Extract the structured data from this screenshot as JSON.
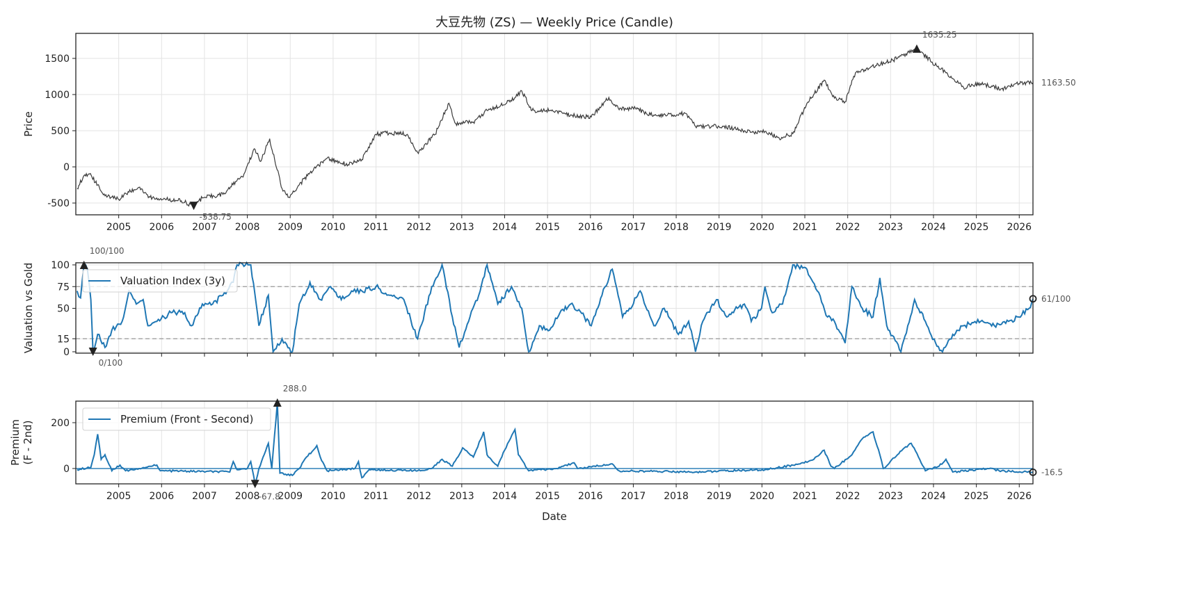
{
  "title": "大豆先物 (ZS) — Weekly Price (Candle)",
  "colors": {
    "price": "#3a3a3a",
    "series": "#1f77b4",
    "grid": "#e3e3e3",
    "ref": "#999999",
    "marker": "#222222"
  },
  "chart_data": [
    {
      "type": "line",
      "subtype": "candle",
      "ylabel": "Price",
      "xlabel": "",
      "xlim": [
        2004.0,
        2026.32
      ],
      "ylim": [
        -663,
        1846
      ],
      "yticks": [
        -500,
        0,
        500,
        1000,
        1500
      ],
      "xticks": [
        "2005",
        "2006",
        "2007",
        "2008",
        "2009",
        "2010",
        "2011",
        "2012",
        "2013",
        "2014",
        "2015",
        "2016",
        "2017",
        "2018",
        "2019",
        "2020",
        "2021",
        "2022",
        "2023",
        "2024",
        "2025",
        "2026"
      ],
      "grid": true,
      "points": [
        [
          2004.03,
          -300
        ],
        [
          2004.19,
          -120
        ],
        [
          2004.32,
          -100
        ],
        [
          2004.51,
          -250
        ],
        [
          2004.68,
          -400
        ],
        [
          2005.0,
          -450
        ],
        [
          2005.24,
          -350
        ],
        [
          2005.49,
          -280
        ],
        [
          2005.73,
          -420
        ],
        [
          2006.46,
          -470
        ],
        [
          2006.75,
          -538.75
        ],
        [
          2006.95,
          -430
        ],
        [
          2007.43,
          -380
        ],
        [
          2007.92,
          -100
        ],
        [
          2008.16,
          250
        ],
        [
          2008.32,
          80
        ],
        [
          2008.52,
          390
        ],
        [
          2008.81,
          -300
        ],
        [
          2008.97,
          -420
        ],
        [
          2009.21,
          -250
        ],
        [
          2009.46,
          -80
        ],
        [
          2009.86,
          120
        ],
        [
          2010.35,
          30
        ],
        [
          2010.67,
          100
        ],
        [
          2011.0,
          450
        ],
        [
          2011.32,
          470
        ],
        [
          2011.73,
          450
        ],
        [
          2011.97,
          200
        ],
        [
          2012.38,
          450
        ],
        [
          2012.7,
          880
        ],
        [
          2012.86,
          600
        ],
        [
          2013.27,
          620
        ],
        [
          2013.59,
          780
        ],
        [
          2013.91,
          850
        ],
        [
          2014.24,
          960
        ],
        [
          2014.4,
          1050
        ],
        [
          2014.64,
          780
        ],
        [
          2015.05,
          780
        ],
        [
          2015.54,
          720
        ],
        [
          2016.02,
          690
        ],
        [
          2016.43,
          960
        ],
        [
          2016.67,
          790
        ],
        [
          2016.99,
          820
        ],
        [
          2017.4,
          720
        ],
        [
          2017.8,
          720
        ],
        [
          2018.21,
          740
        ],
        [
          2018.45,
          560
        ],
        [
          2019.1,
          560
        ],
        [
          2019.75,
          480
        ],
        [
          2020.07,
          490
        ],
        [
          2020.4,
          400
        ],
        [
          2020.72,
          460
        ],
        [
          2021.05,
          880
        ],
        [
          2021.45,
          1200
        ],
        [
          2021.69,
          950
        ],
        [
          2021.94,
          900
        ],
        [
          2022.18,
          1300
        ],
        [
          2022.67,
          1400
        ],
        [
          2023.16,
          1500
        ],
        [
          2023.61,
          1635.25
        ],
        [
          2023.97,
          1450
        ],
        [
          2024.29,
          1300
        ],
        [
          2024.7,
          1100
        ],
        [
          2025.1,
          1150
        ],
        [
          2025.59,
          1080
        ],
        [
          2025.99,
          1150
        ],
        [
          2026.32,
          1163.5
        ]
      ],
      "annotations": {
        "max": {
          "x": 2023.61,
          "y": 1635.25,
          "label": "1635.25"
        },
        "min": {
          "x": 2006.75,
          "y": -538.75,
          "label": "-538.75"
        },
        "last": {
          "y": 1163.5,
          "label": "1163.50"
        }
      }
    },
    {
      "type": "line",
      "ylabel": "Valuation vs Gold",
      "xlim": [
        2004.0,
        2026.32
      ],
      "ylim": [
        -1.6,
        102.4
      ],
      "yticks": [
        0,
        15,
        50,
        75,
        100
      ],
      "reference_lines": [
        75,
        15
      ],
      "grid": true,
      "legend": "upper-left",
      "series": [
        {
          "name": "Valuation Index (3y)",
          "points": [
            [
              2004.03,
              70
            ],
            [
              2004.11,
              62
            ],
            [
              2004.19,
              100
            ],
            [
              2004.27,
              95
            ],
            [
              2004.35,
              60
            ],
            [
              2004.4,
              0
            ],
            [
              2004.51,
              20
            ],
            [
              2004.68,
              5
            ],
            [
              2004.84,
              25
            ],
            [
              2005.08,
              35
            ],
            [
              2005.24,
              70
            ],
            [
              2005.41,
              55
            ],
            [
              2005.57,
              60
            ],
            [
              2005.68,
              30
            ],
            [
              2005.89,
              35
            ],
            [
              2006.22,
              45
            ],
            [
              2006.54,
              45
            ],
            [
              2006.7,
              30
            ],
            [
              2006.95,
              55
            ],
            [
              2007.19,
              55
            ],
            [
              2007.43,
              65
            ],
            [
              2007.67,
              80
            ],
            [
              2007.76,
              100
            ],
            [
              2008.08,
              100
            ],
            [
              2008.27,
              30
            ],
            [
              2008.49,
              65
            ],
            [
              2008.6,
              0
            ],
            [
              2008.81,
              15
            ],
            [
              2009.05,
              0
            ],
            [
              2009.21,
              55
            ],
            [
              2009.46,
              80
            ],
            [
              2009.7,
              60
            ],
            [
              2009.94,
              75
            ],
            [
              2010.19,
              60
            ],
            [
              2010.43,
              70
            ],
            [
              2010.67,
              70
            ],
            [
              2011.0,
              75
            ],
            [
              2011.32,
              65
            ],
            [
              2011.65,
              60
            ],
            [
              2011.97,
              15
            ],
            [
              2012.3,
              75
            ],
            [
              2012.54,
              100
            ],
            [
              2012.78,
              40
            ],
            [
              2012.94,
              5
            ],
            [
              2013.19,
              40
            ],
            [
              2013.43,
              70
            ],
            [
              2013.59,
              100
            ],
            [
              2013.84,
              55
            ],
            [
              2014.16,
              75
            ],
            [
              2014.4,
              50
            ],
            [
              2014.56,
              0
            ],
            [
              2014.81,
              30
            ],
            [
              2015.05,
              25
            ],
            [
              2015.29,
              45
            ],
            [
              2015.54,
              55
            ],
            [
              2015.86,
              40
            ],
            [
              2016.02,
              30
            ],
            [
              2016.27,
              65
            ],
            [
              2016.51,
              95
            ],
            [
              2016.75,
              40
            ],
            [
              2016.91,
              50
            ],
            [
              2017.16,
              70
            ],
            [
              2017.48,
              30
            ],
            [
              2017.72,
              50
            ],
            [
              2018.05,
              20
            ],
            [
              2018.29,
              35
            ],
            [
              2018.45,
              0
            ],
            [
              2018.62,
              35
            ],
            [
              2018.94,
              60
            ],
            [
              2019.18,
              40
            ],
            [
              2019.43,
              50
            ],
            [
              2019.59,
              55
            ],
            [
              2019.75,
              35
            ],
            [
              2019.99,
              50
            ],
            [
              2020.07,
              75
            ],
            [
              2020.24,
              45
            ],
            [
              2020.48,
              55
            ],
            [
              2020.72,
              100
            ],
            [
              2021.05,
              95
            ],
            [
              2021.29,
              70
            ],
            [
              2021.53,
              40
            ],
            [
              2021.69,
              35
            ],
            [
              2021.94,
              10
            ],
            [
              2022.1,
              75
            ],
            [
              2022.34,
              50
            ],
            [
              2022.59,
              40
            ],
            [
              2022.75,
              85
            ],
            [
              2022.91,
              30
            ],
            [
              2023.24,
              0
            ],
            [
              2023.4,
              30
            ],
            [
              2023.56,
              60
            ],
            [
              2023.81,
              35
            ],
            [
              2024.05,
              10
            ],
            [
              2024.21,
              0
            ],
            [
              2024.45,
              20
            ],
            [
              2024.7,
              30
            ],
            [
              2025.1,
              35
            ],
            [
              2025.42,
              30
            ],
            [
              2025.75,
              35
            ],
            [
              2025.99,
              40
            ],
            [
              2026.23,
              50
            ],
            [
              2026.32,
              61
            ]
          ]
        }
      ],
      "annotations": {
        "max": {
          "x": 2004.19,
          "y": 100,
          "label": "100/100"
        },
        "min": {
          "x": 2004.4,
          "y": 0,
          "label": "0/100"
        },
        "last": {
          "y": 61,
          "label": "61/100"
        }
      }
    },
    {
      "type": "line",
      "ylabel": "Premium\n(F - 2nd)",
      "xlabel": "Date",
      "xlim": [
        2004.0,
        2026.32
      ],
      "ylim": [
        -67,
        294
      ],
      "yticks": [
        0,
        200
      ],
      "reference_lines": [
        0
      ],
      "grid": true,
      "legend": "upper-left",
      "series": [
        {
          "name": "Premium (Front - Second)",
          "points": [
            [
              2004.03,
              -5
            ],
            [
              2004.35,
              5
            ],
            [
              2004.43,
              60
            ],
            [
              2004.51,
              150
            ],
            [
              2004.59,
              40
            ],
            [
              2004.68,
              60
            ],
            [
              2004.84,
              -10
            ],
            [
              2005.03,
              15
            ],
            [
              2005.16,
              -10
            ],
            [
              2005.89,
              15
            ],
            [
              2005.97,
              -10
            ],
            [
              2007.59,
              -15
            ],
            [
              2007.67,
              30
            ],
            [
              2007.76,
              -5
            ],
            [
              2008.0,
              0
            ],
            [
              2008.08,
              30
            ],
            [
              2008.18,
              -67.8
            ],
            [
              2008.27,
              0
            ],
            [
              2008.49,
              110
            ],
            [
              2008.57,
              0
            ],
            [
              2008.7,
              288
            ],
            [
              2008.76,
              -20
            ],
            [
              2009.05,
              -30
            ],
            [
              2009.21,
              0
            ],
            [
              2009.38,
              50
            ],
            [
              2009.54,
              80
            ],
            [
              2009.62,
              100
            ],
            [
              2009.7,
              50
            ],
            [
              2009.86,
              -10
            ],
            [
              2010.51,
              0
            ],
            [
              2010.59,
              30
            ],
            [
              2010.67,
              -40
            ],
            [
              2010.84,
              -5
            ],
            [
              2011.97,
              -10
            ],
            [
              2012.3,
              0
            ],
            [
              2012.54,
              40
            ],
            [
              2012.78,
              10
            ],
            [
              2013.02,
              90
            ],
            [
              2013.27,
              50
            ],
            [
              2013.51,
              160
            ],
            [
              2013.59,
              60
            ],
            [
              2013.84,
              10
            ],
            [
              2014.0,
              80
            ],
            [
              2014.24,
              170
            ],
            [
              2014.32,
              60
            ],
            [
              2014.56,
              -10
            ],
            [
              2015.21,
              0
            ],
            [
              2015.62,
              25
            ],
            [
              2015.7,
              0
            ],
            [
              2016.51,
              20
            ],
            [
              2016.67,
              -10
            ],
            [
              2018.45,
              -15
            ],
            [
              2020.07,
              -5
            ],
            [
              2020.89,
              20
            ],
            [
              2021.21,
              40
            ],
            [
              2021.45,
              80
            ],
            [
              2021.61,
              10
            ],
            [
              2021.69,
              0
            ],
            [
              2022.1,
              60
            ],
            [
              2022.34,
              130
            ],
            [
              2022.59,
              160
            ],
            [
              2022.75,
              60
            ],
            [
              2022.83,
              0
            ],
            [
              2023.16,
              60
            ],
            [
              2023.32,
              90
            ],
            [
              2023.48,
              110
            ],
            [
              2023.65,
              50
            ],
            [
              2023.81,
              -10
            ],
            [
              2024.13,
              10
            ],
            [
              2024.29,
              40
            ],
            [
              2024.45,
              -15
            ],
            [
              2025.26,
              0
            ],
            [
              2025.59,
              -10
            ],
            [
              2026.32,
              -16.5
            ]
          ]
        }
      ],
      "annotations": {
        "max": {
          "x": 2008.7,
          "y": 288,
          "label": "288.0"
        },
        "min": {
          "x": 2008.18,
          "y": -67.8,
          "label": "-67.8"
        },
        "last": {
          "y": -16.5,
          "label": "-16.5"
        }
      }
    }
  ]
}
